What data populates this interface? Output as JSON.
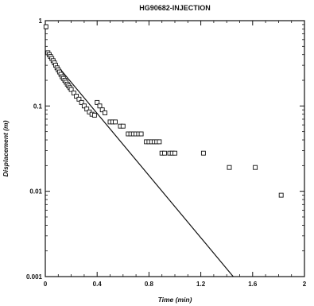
{
  "chart_data": {
    "type": "scatter",
    "title": "HG90682-INJECTION",
    "xlabel": "Time (min)",
    "ylabel": "Displacement (m)",
    "x_scale": "linear",
    "y_scale": "log",
    "xlim": [
      0,
      2
    ],
    "ylim": [
      0.001,
      1
    ],
    "x_ticks": [
      0,
      0.4,
      0.8,
      1.2,
      1.6,
      2
    ],
    "x_tick_labels": [
      "0",
      "0.4",
      "0.8",
      "1.2",
      "1.6",
      "2"
    ],
    "y_ticks": [
      0.001,
      0.01,
      0.1,
      1
    ],
    "y_tick_labels": [
      "0.001",
      "0.01",
      "0.1",
      "1"
    ],
    "grid": false,
    "colors": {
      "axis": "#111111",
      "marker": "#111111",
      "line": "#111111"
    },
    "series": [
      {
        "kind": "points",
        "marker": "open-square",
        "x": [
          0.005,
          0.02,
          0.03,
          0.04,
          0.05,
          0.06,
          0.07,
          0.08,
          0.09,
          0.1,
          0.11,
          0.12,
          0.13,
          0.14,
          0.15,
          0.16,
          0.17,
          0.18,
          0.19,
          0.2,
          0.22,
          0.24,
          0.26,
          0.28,
          0.3,
          0.32,
          0.34,
          0.36,
          0.38,
          0.4,
          0.42,
          0.44,
          0.46,
          0.5,
          0.52,
          0.54,
          0.58,
          0.6,
          0.64,
          0.66,
          0.68,
          0.7,
          0.72,
          0.74,
          0.78,
          0.8,
          0.82,
          0.84,
          0.86,
          0.88,
          0.9,
          0.92,
          0.96,
          0.98,
          1.0,
          1.22,
          1.42,
          1.62,
          1.82
        ],
        "y": [
          0.85,
          0.42,
          0.4,
          0.38,
          0.36,
          0.34,
          0.32,
          0.3,
          0.28,
          0.265,
          0.25,
          0.235,
          0.22,
          0.21,
          0.2,
          0.19,
          0.18,
          0.172,
          0.164,
          0.156,
          0.142,
          0.13,
          0.12,
          0.11,
          0.1,
          0.092,
          0.085,
          0.08,
          0.078,
          0.11,
          0.1,
          0.09,
          0.083,
          0.065,
          0.065,
          0.065,
          0.058,
          0.058,
          0.047,
          0.047,
          0.047,
          0.047,
          0.047,
          0.047,
          0.038,
          0.038,
          0.038,
          0.038,
          0.038,
          0.038,
          0.028,
          0.028,
          0.028,
          0.028,
          0.028,
          0.028,
          0.019,
          0.019,
          0.009
        ]
      },
      {
        "kind": "line",
        "x": [
          0.01,
          1.45
        ],
        "y": [
          0.42,
          0.001
        ]
      }
    ]
  }
}
